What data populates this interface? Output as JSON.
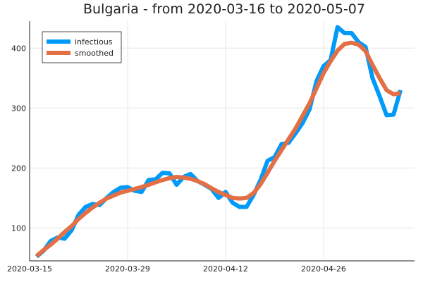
{
  "chart_data": {
    "type": "line",
    "title": "Bulgaria - from 2020-03-16 to 2020-05-07",
    "xlabel": "",
    "ylabel": "",
    "x_tick_labels": [
      "2020-03-15",
      "2020-03-29",
      "2020-04-12",
      "2020-04-26"
    ],
    "y_ticks": [
      100,
      200,
      300,
      400
    ],
    "y_tick_labels": [
      "100",
      "200",
      "300",
      "400"
    ],
    "xlim": [
      "2020-03-15",
      "2020-05-09"
    ],
    "ylim": [
      45,
      445
    ],
    "grid": true,
    "legend_position": "top-left",
    "x": [
      "2020-03-16",
      "2020-03-17",
      "2020-03-18",
      "2020-03-19",
      "2020-03-20",
      "2020-03-21",
      "2020-03-22",
      "2020-03-23",
      "2020-03-24",
      "2020-03-25",
      "2020-03-26",
      "2020-03-27",
      "2020-03-28",
      "2020-03-29",
      "2020-03-30",
      "2020-03-31",
      "2020-04-01",
      "2020-04-02",
      "2020-04-03",
      "2020-04-04",
      "2020-04-05",
      "2020-04-06",
      "2020-04-07",
      "2020-04-08",
      "2020-04-09",
      "2020-04-10",
      "2020-04-11",
      "2020-04-12",
      "2020-04-13",
      "2020-04-14",
      "2020-04-15",
      "2020-04-16",
      "2020-04-17",
      "2020-04-18",
      "2020-04-19",
      "2020-04-20",
      "2020-04-21",
      "2020-04-22",
      "2020-04-23",
      "2020-04-24",
      "2020-04-25",
      "2020-04-26",
      "2020-04-27",
      "2020-04-28",
      "2020-04-29",
      "2020-04-30",
      "2020-05-01",
      "2020-05-02",
      "2020-05-03",
      "2020-05-04",
      "2020-05-05",
      "2020-05-06",
      "2020-05-07"
    ],
    "series": [
      {
        "name": "infectious",
        "color": "#009af9",
        "values": [
          52,
          62,
          78,
          84,
          82,
          96,
          122,
          135,
          140,
          138,
          150,
          160,
          167,
          168,
          162,
          160,
          180,
          181,
          192,
          191,
          172,
          185,
          190,
          178,
          172,
          165,
          150,
          160,
          142,
          135,
          135,
          155,
          180,
          212,
          218,
          240,
          242,
          258,
          275,
          298,
          345,
          370,
          380,
          435,
          425,
          425,
          410,
          402,
          350,
          320,
          288,
          289,
          330
        ]
      },
      {
        "name": "smoothed",
        "color": "#e26f46",
        "values": [
          53,
          63,
          72,
          82,
          93,
          103,
          115,
          125,
          134,
          142,
          149,
          154,
          159,
          162,
          165,
          168,
          172,
          176,
          180,
          183,
          185,
          184,
          182,
          178,
          173,
          166,
          160,
          155,
          150,
          149,
          150,
          158,
          173,
          192,
          212,
          230,
          248,
          266,
          287,
          308,
          333,
          358,
          378,
          396,
          407,
          409,
          406,
          395,
          372,
          350,
          330,
          323,
          325
        ]
      }
    ]
  }
}
